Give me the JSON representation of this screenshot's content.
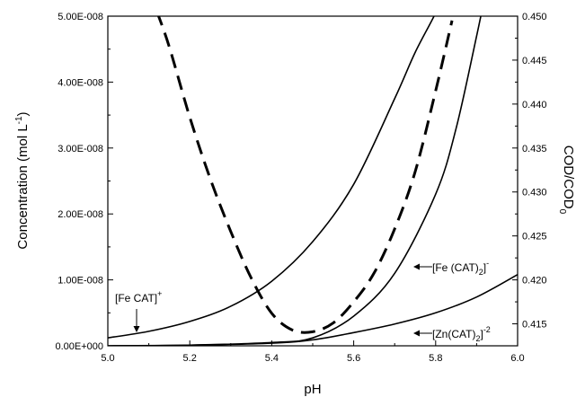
{
  "chart_data": {
    "type": "line",
    "xlabel": "pH",
    "ylabel_left": "Concentration (mol L",
    "ylabel_left_sup": "-1",
    "ylabel_left_end": ")",
    "ylabel_right": "COD/COD",
    "ylabel_right_sub": "0",
    "xlim": [
      5.0,
      6.0
    ],
    "ylim_left": [
      0,
      5e-08
    ],
    "ylim_right": [
      0.4125,
      0.45
    ],
    "grid": false,
    "x_ticks": [
      "5.0",
      "5.2",
      "5.4",
      "5.6",
      "5.8",
      "6.0"
    ],
    "y_left_ticks": [
      "0.00E+000",
      "1.00E-008",
      "2.00E-008",
      "3.00E-008",
      "4.00E-008",
      "5.00E-008"
    ],
    "y_right_ticks": [
      "0.415",
      "0.420",
      "0.425",
      "0.430",
      "0.435",
      "0.440",
      "0.445",
      "0.450"
    ],
    "series": [
      {
        "name": "[Fe CAT]+",
        "axis": "left",
        "style": "solid",
        "x": [
          5.0,
          5.1,
          5.2,
          5.3,
          5.4,
          5.5,
          5.6,
          5.7,
          5.75,
          5.8,
          5.83
        ],
        "values": [
          1.2e-09,
          2.2e-09,
          3.7e-09,
          6e-09,
          9.8e-09,
          1.58e-08,
          2.45e-08,
          3.75e-08,
          4.45e-08,
          5.05e-08,
          5.5e-08
        ]
      },
      {
        "name": "[Fe (CAT)2]-",
        "axis": "left",
        "style": "solid",
        "x": [
          5.0,
          5.2,
          5.4,
          5.5,
          5.6,
          5.7,
          5.8,
          5.85,
          5.9,
          5.92
        ],
        "values": [
          0,
          1e-10,
          5e-10,
          1.2e-09,
          4.5e-09,
          1.1e-08,
          2.3e-08,
          3.3e-08,
          4.7e-08,
          5.3e-08
        ]
      },
      {
        "name": "[Zn(CAT)2]-2",
        "axis": "left",
        "style": "solid",
        "x": [
          5.0,
          5.2,
          5.4,
          5.5,
          5.6,
          5.7,
          5.8,
          5.9,
          6.0
        ],
        "values": [
          0,
          1e-10,
          4e-10,
          9e-10,
          2e-09,
          3.3e-09,
          5e-09,
          7.4e-09,
          1.08e-08
        ]
      },
      {
        "name": "COD/COD0",
        "axis": "right",
        "style": "dashed",
        "x": [
          5.12,
          5.15,
          5.2,
          5.25,
          5.3,
          5.35,
          5.4,
          5.45,
          5.5,
          5.55,
          5.6,
          5.65,
          5.7,
          5.75,
          5.8,
          5.84
        ],
        "values": [
          0.4505,
          0.4465,
          0.4385,
          0.4315,
          0.4255,
          0.4202,
          0.4162,
          0.4143,
          0.4141,
          0.4151,
          0.4175,
          0.4208,
          0.4258,
          0.4323,
          0.4415,
          0.4495
        ]
      }
    ],
    "annotations": {
      "fe_cat": {
        "text": "[Fe CAT]",
        "sup": "+"
      },
      "fe_cat2": {
        "text": "[Fe (CAT)",
        "sub": "2",
        "end": "]",
        "sup": "-"
      },
      "zn_cat2": {
        "text": "[Zn(CAT)",
        "sub": "2",
        "end": "]",
        "sup": "-2"
      }
    }
  }
}
